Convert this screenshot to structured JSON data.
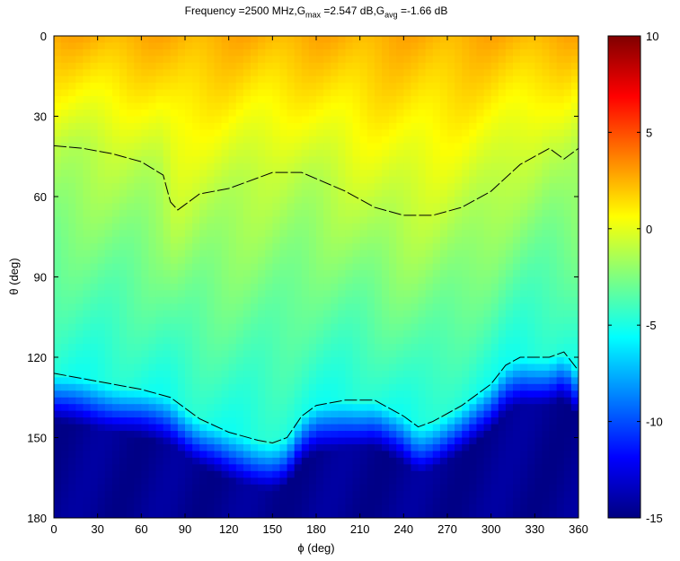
{
  "chart_data": {
    "type": "heatmap",
    "title_parts": {
      "prefix": "Frequency =2500 MHz,G",
      "gmax_sub": "max",
      "gmax_val": " =2.547 dB,G",
      "gavg_sub": "avg",
      "gavg_val": " =-1.66 dB"
    },
    "xlabel": "ϕ (deg)",
    "ylabel": "θ (deg)",
    "xlim": [
      0,
      360
    ],
    "ylim": [
      0,
      180
    ],
    "y_reversed": true,
    "x_ticks": [
      0,
      30,
      60,
      90,
      120,
      150,
      180,
      210,
      240,
      270,
      300,
      330,
      360
    ],
    "y_ticks": [
      0,
      30,
      60,
      90,
      120,
      150,
      180
    ],
    "colorbar": {
      "range": [
        -15,
        10
      ],
      "ticks": [
        -15,
        -10,
        -5,
        0,
        5,
        10
      ],
      "colormap": "jet"
    },
    "gain_profile_theta": [
      0,
      10,
      20,
      30,
      40,
      50,
      60,
      70,
      80,
      90,
      100,
      110,
      120,
      130,
      140,
      150,
      160,
      170,
      180
    ],
    "gain_profile_db": [
      2.5,
      2.2,
      1.6,
      1.0,
      0.3,
      -0.4,
      -1.2,
      -1.8,
      -2.2,
      -2.5,
      -2.7,
      -2.8,
      -3.0,
      -3.6,
      -4.5,
      -6.0,
      -12.0,
      -14.0,
      -14.5
    ],
    "contour_upper_phi": [
      0,
      20,
      40,
      60,
      75,
      80,
      85,
      90,
      100,
      120,
      140,
      150,
      170,
      200,
      220,
      240,
      260,
      280,
      300,
      320,
      340,
      350,
      360
    ],
    "contour_upper_theta": [
      41,
      42,
      44,
      47,
      52,
      62,
      65,
      63,
      59,
      57,
      53,
      51,
      51,
      58,
      64,
      67,
      67,
      64,
      58,
      48,
      42,
      46,
      42
    ],
    "contour_lower_phi": [
      0,
      20,
      40,
      60,
      80,
      100,
      120,
      140,
      150,
      160,
      170,
      180,
      200,
      220,
      240,
      250,
      260,
      280,
      300,
      310,
      320,
      340,
      350,
      360
    ],
    "contour_lower_theta": [
      126,
      128,
      130,
      132,
      135,
      143,
      148,
      151,
      152,
      150,
      142,
      138,
      136,
      136,
      142,
      146,
      144,
      138,
      130,
      123,
      120,
      120,
      118,
      125
    ]
  }
}
